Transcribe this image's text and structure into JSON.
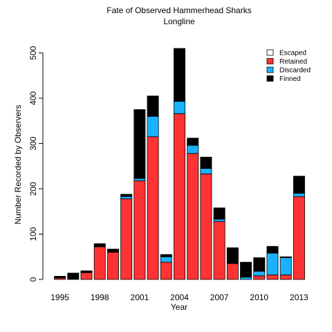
{
  "chart_data": {
    "type": "bar",
    "stacked": true,
    "title": "Fate of Observed Hammerhead Sharks",
    "subtitle": "Longline",
    "xlabel": "Year",
    "ylabel": "Number Recorded by Observers",
    "ylim": [
      0,
      510
    ],
    "yticks": [
      0,
      100,
      200,
      300,
      400,
      500
    ],
    "categories": [
      "1995",
      "1996",
      "1997",
      "1998",
      "1999",
      "2000",
      "2001",
      "2002",
      "2003",
      "2004",
      "2005",
      "2006",
      "2007",
      "2008",
      "2009",
      "2010",
      "2011",
      "2012",
      "2013"
    ],
    "xtick_labels": [
      "1995",
      "1998",
      "2001",
      "2004",
      "2007",
      "2010",
      "2013"
    ],
    "legend_position": "top-right",
    "grid": false,
    "series": [
      {
        "name": "Escaped",
        "color": "#ffffff",
        "values": [
          0,
          0,
          0,
          0,
          0,
          0,
          0,
          0,
          0,
          0,
          0,
          0,
          0,
          0,
          0,
          0,
          0,
          0,
          0
        ]
      },
      {
        "name": "Retained",
        "color": "#ff3333",
        "values": [
          3,
          0,
          15,
          72,
          60,
          178,
          218,
          315,
          38,
          366,
          278,
          233,
          128,
          35,
          0,
          8,
          10,
          10,
          183
        ]
      },
      {
        "name": "Discarded",
        "color": "#1ab2ff",
        "values": [
          0,
          0,
          0,
          0,
          0,
          5,
          5,
          45,
          12,
          27,
          18,
          12,
          5,
          0,
          5,
          10,
          48,
          38,
          7
        ]
      },
      {
        "name": "Finned",
        "color": "#000000",
        "values": [
          4,
          14,
          4,
          7,
          7,
          5,
          152,
          45,
          5,
          117,
          16,
          25,
          25,
          35,
          33,
          30,
          15,
          2,
          38
        ]
      }
    ]
  }
}
